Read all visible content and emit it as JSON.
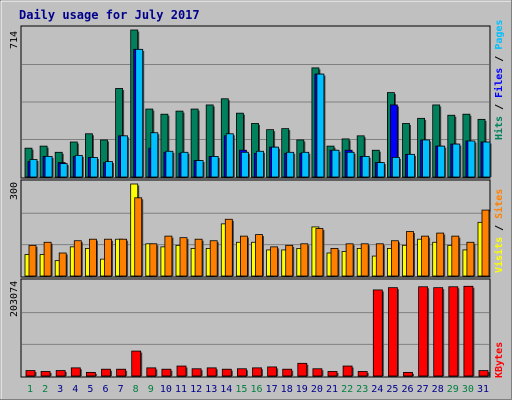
{
  "title": "Daily usage for July 2017",
  "colors": {
    "background": "#c0c0c0",
    "title": "#00008b",
    "hits": "#00805c",
    "files": "#0000ff",
    "pages": "#00c0ff",
    "visits": "#ffff00",
    "sites": "#ff8000",
    "kbytes": "#ff0000",
    "weekend_label": "#008040",
    "weekday_label": "#00008b"
  },
  "chart_data": [
    {
      "type": "bar",
      "panel": "hits-files-pages",
      "max_label": "714",
      "ylim": [
        0,
        714
      ],
      "x": [
        1,
        2,
        3,
        4,
        5,
        6,
        7,
        8,
        9,
        10,
        11,
        12,
        13,
        14,
        15,
        16,
        17,
        18,
        19,
        20,
        21,
        22,
        23,
        24,
        25,
        26,
        27,
        28,
        29,
        30,
        31
      ],
      "series": [
        {
          "name": "Hits",
          "values": [
            140,
            150,
            120,
            170,
            210,
            180,
            430,
            714,
            330,
            305,
            320,
            330,
            350,
            380,
            310,
            260,
            230,
            235,
            180,
            530,
            150,
            185,
            200,
            130,
            410,
            260,
            285,
            350,
            300,
            305,
            280
          ]
        },
        {
          "name": "Files",
          "values": [
            75,
            100,
            70,
            100,
            95,
            70,
            200,
            620,
            140,
            120,
            115,
            80,
            100,
            200,
            130,
            115,
            145,
            115,
            115,
            500,
            130,
            130,
            100,
            70,
            350,
            110,
            180,
            150,
            160,
            175,
            170
          ]
        },
        {
          "name": "Pages",
          "values": [
            85,
            100,
            65,
            105,
            95,
            75,
            200,
            620,
            215,
            125,
            120,
            80,
            100,
            210,
            120,
            125,
            145,
            120,
            120,
            500,
            130,
            120,
            100,
            70,
            95,
            110,
            180,
            150,
            160,
            175,
            170
          ]
        }
      ]
    },
    {
      "type": "bar",
      "panel": "visits-sites",
      "max_label": "300",
      "ylim": [
        0,
        300
      ],
      "x": [
        1,
        2,
        3,
        4,
        5,
        6,
        7,
        8,
        9,
        10,
        11,
        12,
        13,
        14,
        15,
        16,
        17,
        18,
        19,
        20,
        21,
        22,
        23,
        24,
        25,
        26,
        27,
        28,
        29,
        30,
        31
      ],
      "series": [
        {
          "name": "Visits",
          "values": [
            70,
            70,
            50,
            95,
            90,
            55,
            120,
            300,
            105,
            95,
            100,
            90,
            90,
            170,
            110,
            110,
            85,
            85,
            90,
            160,
            75,
            80,
            90,
            65,
            90,
            100,
            120,
            110,
            100,
            85,
            175
          ]
        },
        {
          "name": "Sites",
          "values": [
            100,
            110,
            75,
            115,
            120,
            120,
            120,
            255,
            105,
            130,
            125,
            120,
            115,
            185,
            130,
            135,
            95,
            100,
            105,
            155,
            90,
            105,
            105,
            105,
            115,
            145,
            130,
            140,
            130,
            110,
            215
          ]
        }
      ]
    },
    {
      "type": "bar",
      "panel": "kbytes",
      "max_label": "203074",
      "ylim": [
        0,
        203074
      ],
      "x": [
        1,
        2,
        3,
        4,
        5,
        6,
        7,
        8,
        9,
        10,
        11,
        12,
        13,
        14,
        15,
        16,
        17,
        18,
        19,
        20,
        21,
        22,
        23,
        24,
        25,
        26,
        27,
        28,
        29,
        30,
        31
      ],
      "series": [
        {
          "name": "KBytes",
          "values": [
            12000,
            10000,
            12000,
            18000,
            8000,
            15000,
            15000,
            55000,
            18000,
            15000,
            22000,
            16000,
            18000,
            15000,
            16000,
            18000,
            20000,
            15000,
            28000,
            16000,
            10000,
            22000,
            10000,
            190000,
            195000,
            8000,
            197000,
            195000,
            197000,
            198000,
            12000
          ]
        }
      ]
    }
  ],
  "right_labels": {
    "top": [
      {
        "text": "Hits",
        "color": "#00805c"
      },
      {
        "text": " / ",
        "color": "#000000"
      },
      {
        "text": "Files",
        "color": "#0000ff"
      },
      {
        "text": " / ",
        "color": "#000000"
      },
      {
        "text": "Pages",
        "color": "#00c0ff"
      }
    ],
    "mid": [
      {
        "text": "Visits",
        "color": "#ffff00"
      },
      {
        "text": " / ",
        "color": "#000000"
      },
      {
        "text": "Sites",
        "color": "#ff8000"
      }
    ],
    "bottom": [
      {
        "text": "KBytes",
        "color": "#ff0000"
      }
    ]
  },
  "weekend_days": [
    1,
    2,
    8,
    9,
    15,
    16,
    22,
    23,
    29,
    30
  ]
}
